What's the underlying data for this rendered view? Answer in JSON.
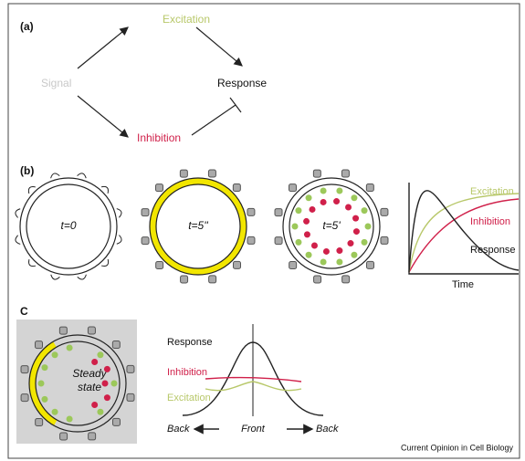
{
  "panel_a": {
    "label": "(a)",
    "stimulus": "Signal",
    "excitation": "Excitation",
    "response": "Response",
    "inhibition": "Inhibition"
  },
  "panel_b": {
    "label": "(b)",
    "cells": [
      "t=0",
      "t=5''",
      "t=5'"
    ],
    "plot": {
      "excitation": "Excitation",
      "inhibition": "Inhibition",
      "response": "Response",
      "x_label": "Time"
    }
  },
  "panel_c": {
    "label": "C",
    "cell_label": [
      "Steady",
      "state"
    ],
    "plot": {
      "response": "Response",
      "inhibition": "Inhibition",
      "excitation": "Excitation",
      "back_left": "Back",
      "front": "Front",
      "back_right": "Back"
    }
  },
  "footer": "Current Opinion in Cell Biology"
}
